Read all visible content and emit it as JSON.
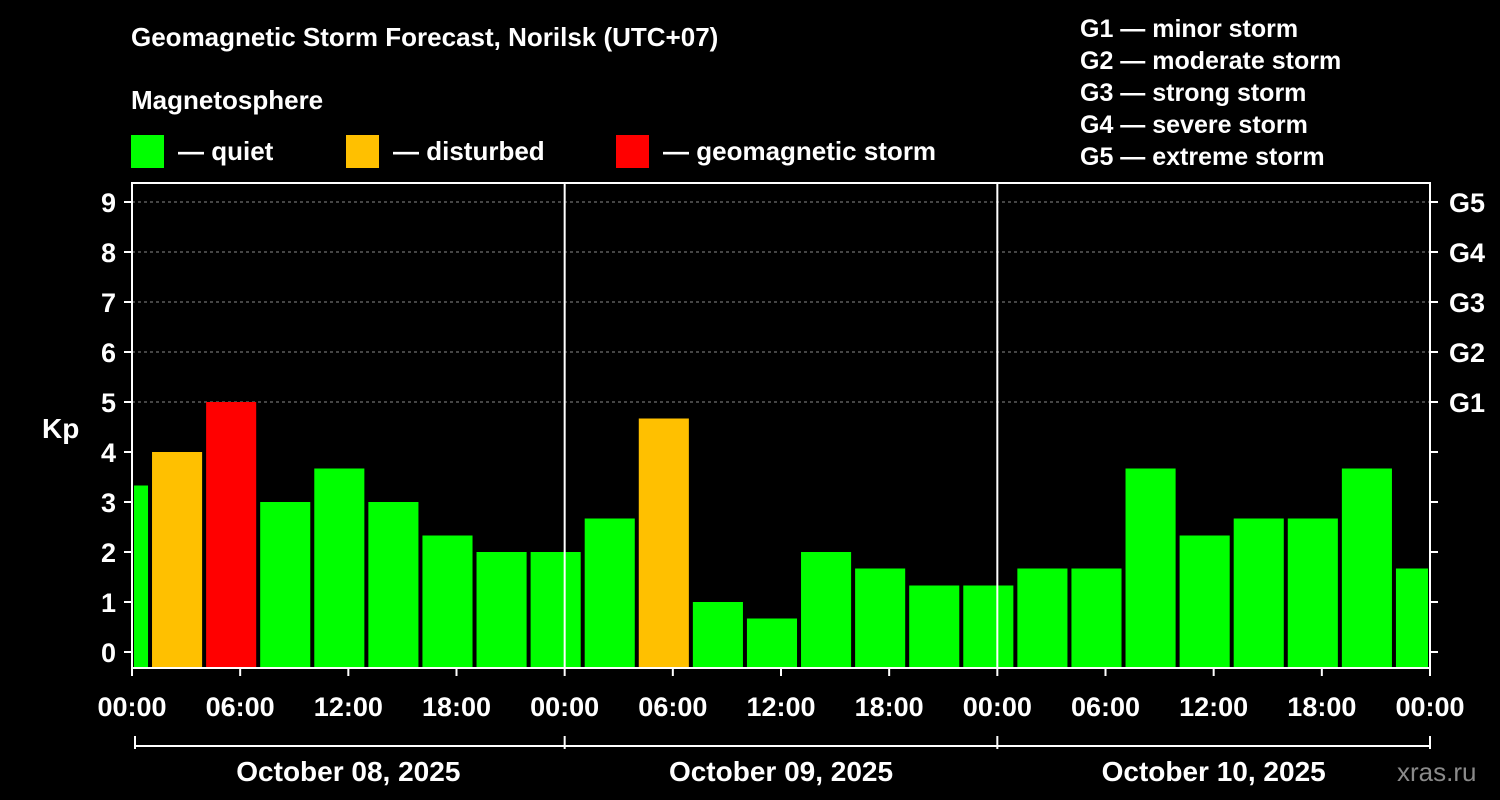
{
  "title": "Geomagnetic Storm Forecast, Norilsk (UTC+07)",
  "legend": {
    "heading": "Magnetosphere",
    "items": [
      {
        "label": "— quiet",
        "color": "#00ff00"
      },
      {
        "label": "— disturbed",
        "color": "#ffc000"
      },
      {
        "label": "— geomagnetic storm",
        "color": "#ff0000"
      }
    ]
  },
  "storm_scale": [
    "G1 — minor storm",
    "G2 — moderate storm",
    "G3 — strong storm",
    "G4 — severe storm",
    "G5 — extreme storm"
  ],
  "watermark": "xras.ru",
  "chart_data": {
    "type": "bar",
    "ylabel": "Kp",
    "ylim": [
      0,
      9
    ],
    "yticks": [
      "0",
      "1",
      "2",
      "3",
      "4",
      "5",
      "6",
      "7",
      "8",
      "9"
    ],
    "y2ticks": [
      {
        "value": 5,
        "label": "G1"
      },
      {
        "value": 6,
        "label": "G2"
      },
      {
        "value": 7,
        "label": "G3"
      },
      {
        "value": 8,
        "label": "G4"
      },
      {
        "value": 9,
        "label": "G5"
      }
    ],
    "grid": true,
    "xticks": [
      "00:00",
      "06:00",
      "12:00",
      "18:00",
      "00:00",
      "06:00",
      "12:00",
      "18:00",
      "00:00",
      "06:00",
      "12:00",
      "18:00",
      "00:00"
    ],
    "days": [
      "October 08, 2025",
      "October 09, 2025",
      "October 10, 2025"
    ],
    "hours_total": 72,
    "bars": [
      {
        "start": 0,
        "end": 1,
        "kp": 3.33,
        "status": "quiet"
      },
      {
        "start": 1,
        "end": 4,
        "kp": 4.0,
        "status": "disturbed"
      },
      {
        "start": 4,
        "end": 7,
        "kp": 5.0,
        "status": "storm"
      },
      {
        "start": 7,
        "end": 10,
        "kp": 3.0,
        "status": "quiet"
      },
      {
        "start": 10,
        "end": 13,
        "kp": 3.67,
        "status": "quiet"
      },
      {
        "start": 13,
        "end": 16,
        "kp": 3.0,
        "status": "quiet"
      },
      {
        "start": 16,
        "end": 19,
        "kp": 2.33,
        "status": "quiet"
      },
      {
        "start": 19,
        "end": 22,
        "kp": 2.0,
        "status": "quiet"
      },
      {
        "start": 22,
        "end": 25,
        "kp": 2.0,
        "status": "quiet"
      },
      {
        "start": 25,
        "end": 28,
        "kp": 2.67,
        "status": "quiet"
      },
      {
        "start": 28,
        "end": 31,
        "kp": 4.67,
        "status": "disturbed"
      },
      {
        "start": 31,
        "end": 34,
        "kp": 1.0,
        "status": "quiet"
      },
      {
        "start": 34,
        "end": 37,
        "kp": 0.67,
        "status": "quiet"
      },
      {
        "start": 37,
        "end": 40,
        "kp": 2.0,
        "status": "quiet"
      },
      {
        "start": 40,
        "end": 43,
        "kp": 1.67,
        "status": "quiet"
      },
      {
        "start": 43,
        "end": 46,
        "kp": 1.33,
        "status": "quiet"
      },
      {
        "start": 46,
        "end": 49,
        "kp": 1.33,
        "status": "quiet"
      },
      {
        "start": 49,
        "end": 52,
        "kp": 1.67,
        "status": "quiet"
      },
      {
        "start": 52,
        "end": 55,
        "kp": 1.67,
        "status": "quiet"
      },
      {
        "start": 55,
        "end": 58,
        "kp": 3.67,
        "status": "quiet"
      },
      {
        "start": 58,
        "end": 61,
        "kp": 2.33,
        "status": "quiet"
      },
      {
        "start": 61,
        "end": 64,
        "kp": 2.67,
        "status": "quiet"
      },
      {
        "start": 64,
        "end": 67,
        "kp": 2.67,
        "status": "quiet"
      },
      {
        "start": 67,
        "end": 70,
        "kp": 3.67,
        "status": "quiet"
      },
      {
        "start": 70,
        "end": 72,
        "kp": 1.67,
        "status": "quiet"
      }
    ],
    "status_colors": {
      "quiet": "#00ff00",
      "disturbed": "#ffc000",
      "storm": "#ff0000"
    }
  }
}
